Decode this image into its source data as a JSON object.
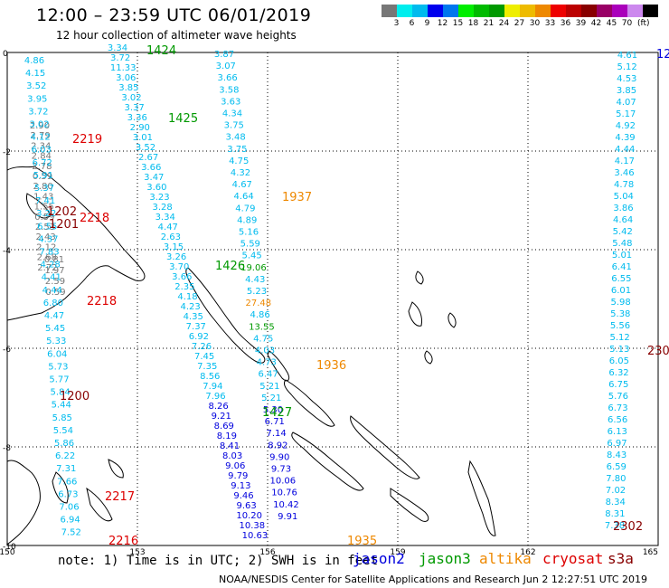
{
  "header": {
    "title": "12:00 – 23:59 UTC 06/01/2019",
    "subtitle": "12 hour collection of altimeter wave heights"
  },
  "legend": {
    "unit": "(ft)",
    "colors": [
      "#777777",
      "#00eeee",
      "#00bbee",
      "#0000ee",
      "#0077ee",
      "#00ee00",
      "#00bb00",
      "#009900",
      "#eeee00",
      "#eebb00",
      "#ee8800",
      "#ee0000",
      "#bb0000",
      "#880000",
      "#990066",
      "#aa00bb",
      "#cc88ee",
      "#000000"
    ],
    "labels": [
      "3",
      "6",
      "9",
      "12",
      "15",
      "18",
      "21",
      "24",
      "27",
      "30",
      "33",
      "36",
      "39",
      "42",
      "45",
      "70"
    ]
  },
  "axes": {
    "x_ticks": [
      "150",
      "153",
      "156",
      "159",
      "162",
      "165"
    ],
    "y_ticks": [
      "0",
      "-2",
      "-4",
      "-6",
      "-8",
      "-10"
    ]
  },
  "satellites": {
    "names": [
      "jason2",
      "jason3",
      "altika",
      "cryosat",
      "s3a"
    ],
    "colors": [
      "#0000dd",
      "#009900",
      "#ee8800",
      "#dd0000",
      "#880000"
    ]
  },
  "note": "note: 1) Time is in UTC; 2) SWH is in feet",
  "footer": "NOAA/NESDIS Center for Satellite Applications and Research   Jun  2 12:27:51 UTC 2019",
  "pass_labels": [
    {
      "text": "1424",
      "color": "#009900"
    },
    {
      "text": "1425",
      "color": "#009900"
    },
    {
      "text": "1426",
      "color": "#009900"
    },
    {
      "text": "1427",
      "color": "#009900"
    },
    {
      "text": "1937",
      "color": "#ee8800"
    },
    {
      "text": "1936",
      "color": "#ee8800"
    },
    {
      "text": "1935",
      "color": "#ee8800"
    },
    {
      "text": "2219",
      "color": "#dd0000"
    },
    {
      "text": "2218",
      "color": "#dd0000"
    },
    {
      "text": "2218",
      "color": "#dd0000"
    },
    {
      "text": "2217",
      "color": "#dd0000"
    },
    {
      "text": "2216",
      "color": "#dd0000"
    },
    {
      "text": "1202",
      "color": "#880000"
    },
    {
      "text": "1201",
      "color": "#880000"
    },
    {
      "text": "1200",
      "color": "#880000"
    },
    {
      "text": "2302",
      "color": "#880000"
    },
    {
      "text": "230",
      "color": "#880000"
    },
    {
      "text": "12",
      "color": "#0000dd"
    }
  ],
  "tracks": {
    "track_2219": {
      "color": "#777777",
      "values": [
        "2.90",
        "2.79",
        "2.34",
        "2.84",
        "2.78",
        "0.59",
        "2.80",
        "1.43",
        "1.55",
        "0.59",
        "2.53",
        "2.43",
        "2.12",
        "2.68",
        "2.72",
        "0.81",
        "1.97",
        "2.59",
        "0.59"
      ]
    },
    "track_1424": {
      "color": "#00bbee",
      "values": [
        "3.34",
        "3.72",
        "11.33",
        "3.06",
        "3.85",
        "3.02",
        "3.37",
        "3.36",
        "2.90",
        "3.01",
        "3.52",
        "2.67",
        "3.66",
        "3.47",
        "3.60",
        "3.23",
        "3.28",
        "3.34",
        "4.47",
        "2.63",
        "3.15",
        "3.26",
        "3.70",
        "3.66",
        "2.35",
        "4.18",
        "4.23",
        "4.35",
        "7.37",
        "6.92",
        "7.26",
        "7.45",
        "7.35",
        "8.56",
        "7.94",
        "7.96",
        "8.26",
        "9.21",
        "8.69",
        "8.19",
        "8.41",
        "8.03",
        "9.06",
        "9.79",
        "9.13",
        "9.46",
        "9.63",
        "10.20",
        "10.38",
        "10.63"
      ]
    },
    "track_1425": {
      "color": "#00bbee",
      "values": [
        "3.87",
        "3.07",
        "3.66",
        "3.58",
        "3.63",
        "4.34",
        "3.75",
        "3.48",
        "3.75",
        "4.75",
        "4.32",
        "4.67",
        "4.64",
        "4.79",
        "4.89",
        "5.16",
        "5.59",
        "5.45",
        "19.06",
        "4.43",
        "5.23",
        "27.48",
        "4.86",
        "13.55",
        "4.75",
        "4.03",
        "4.73",
        "6.47",
        "5.21",
        "5.21",
        "5.30",
        "6.71",
        "7.14",
        "8.92",
        "9.90",
        "9.73",
        "10.06",
        "10.76",
        "10.42",
        "9.91"
      ]
    },
    "track_left": {
      "color": "#00bbee",
      "values": [
        "4.86",
        "4.15",
        "3.52",
        "3.95",
        "3.72",
        "3.02",
        "4.12",
        "6.03",
        "6.72",
        "5.91",
        "5.37",
        "7.41",
        "3.22",
        "6.55",
        "4.37",
        "7.83",
        "4.28",
        "4.41",
        "4.44",
        "6.80",
        "4.47",
        "5.45",
        "5.33",
        "6.04",
        "5.73",
        "5.77",
        "5.84",
        "5.44",
        "5.85",
        "5.54",
        "5.86",
        "6.22",
        "7.31",
        "7.66",
        "6.73",
        "7.06",
        "6.94",
        "7.52"
      ]
    },
    "track_right": {
      "color": "#00bbee",
      "values": [
        "4.61",
        "5.12",
        "4.53",
        "3.85",
        "4.07",
        "5.17",
        "4.92",
        "4.39",
        "4.44",
        "4.17",
        "3.46",
        "4.78",
        "5.04",
        "3.86",
        "4.64",
        "5.42",
        "5.48",
        "5.01",
        "6.41",
        "6.55",
        "6.01",
        "5.98",
        "5.38",
        "5.56",
        "5.12",
        "5.13",
        "6.05",
        "6.32",
        "6.75",
        "5.76",
        "6.73",
        "6.56",
        "6.13",
        "6.97",
        "8.43",
        "6.59",
        "7.80",
        "7.02",
        "8.34",
        "8.31",
        "7.38"
      ]
    }
  }
}
